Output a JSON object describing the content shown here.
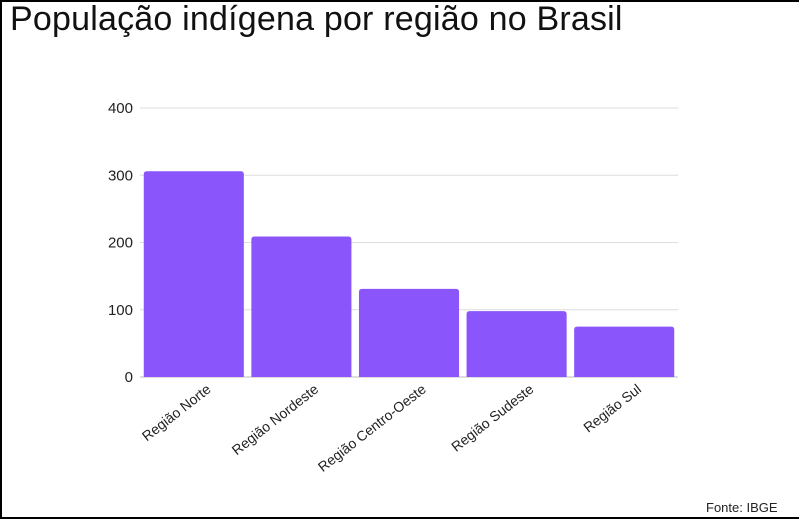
{
  "chart_data": {
    "type": "bar",
    "title": "População indígena por região no Brasil",
    "categories": [
      "Região Norte",
      "Região Nordeste",
      "Região Centro-Oeste",
      "Região Sudeste",
      "Região Sul"
    ],
    "values": [
      306,
      209,
      131,
      98,
      75
    ],
    "yticks": [
      "0",
      "100",
      "200",
      "300",
      "400"
    ],
    "ylim": [
      0,
      400
    ],
    "grid": true,
    "legend": "none",
    "bar_color": "#8a55fb",
    "source": "Fonte: IBGE"
  }
}
